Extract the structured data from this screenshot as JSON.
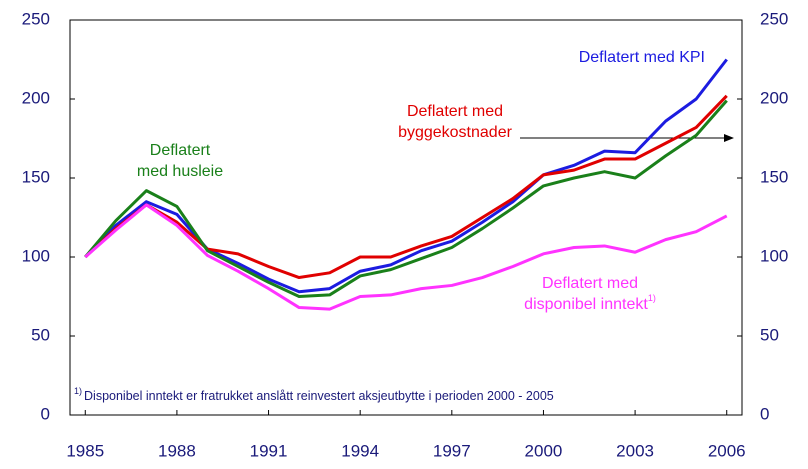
{
  "chart_data": {
    "type": "line",
    "x": [
      1985,
      1986,
      1987,
      1988,
      1989,
      1990,
      1991,
      1992,
      1993,
      1994,
      1995,
      1996,
      1997,
      1998,
      1999,
      2000,
      2001,
      2002,
      2003,
      2004,
      2005,
      2006
    ],
    "xlim": [
      1984.5,
      2006.5
    ],
    "xticks": [
      1985,
      1988,
      1991,
      1994,
      1997,
      2000,
      2003,
      2006
    ],
    "ylim": [
      0,
      250
    ],
    "yticks": [
      0,
      50,
      100,
      150,
      200,
      250
    ],
    "grid": false,
    "series": [
      {
        "labels": [
          "Deflatert med KPI"
        ],
        "color": "#1c1ce0",
        "values": [
          100,
          120,
          135,
          127,
          105,
          96,
          86,
          78,
          80,
          91,
          95,
          104,
          110,
          122,
          135,
          152,
          158,
          167,
          166,
          186,
          200,
          225
        ]
      },
      {
        "labels": [
          "Deflatert med",
          "byggekostnader"
        ],
        "color": "#e00000",
        "values": [
          100,
          118,
          133,
          122,
          105,
          102,
          94,
          87,
          90,
          100,
          100,
          107,
          113,
          125,
          137,
          152,
          155,
          162,
          162,
          172,
          182,
          202
        ]
      },
      {
        "labels": [
          "Deflatert",
          "med husleie"
        ],
        "color": "#1a801a",
        "values": [
          100,
          123,
          142,
          132,
          104,
          94,
          84,
          75,
          76,
          88,
          92,
          99,
          106,
          118,
          131,
          145,
          150,
          154,
          150,
          164,
          177,
          199
        ]
      },
      {
        "labels": [
          "Deflatert med",
          "disponibel inntekt"
        ],
        "color": "#ff33ff",
        "values": [
          100,
          117,
          133,
          120,
          101,
          91,
          80,
          68,
          67,
          75,
          76,
          80,
          82,
          87,
          94,
          102,
          106,
          107,
          103,
          111,
          116,
          126
        ]
      }
    ],
    "footnote": {
      "marker": "1)",
      "text": "Disponibel inntekt er fratrukket anslått reinvestert aksjeutbytte i perioden 2000 - 2005"
    }
  }
}
